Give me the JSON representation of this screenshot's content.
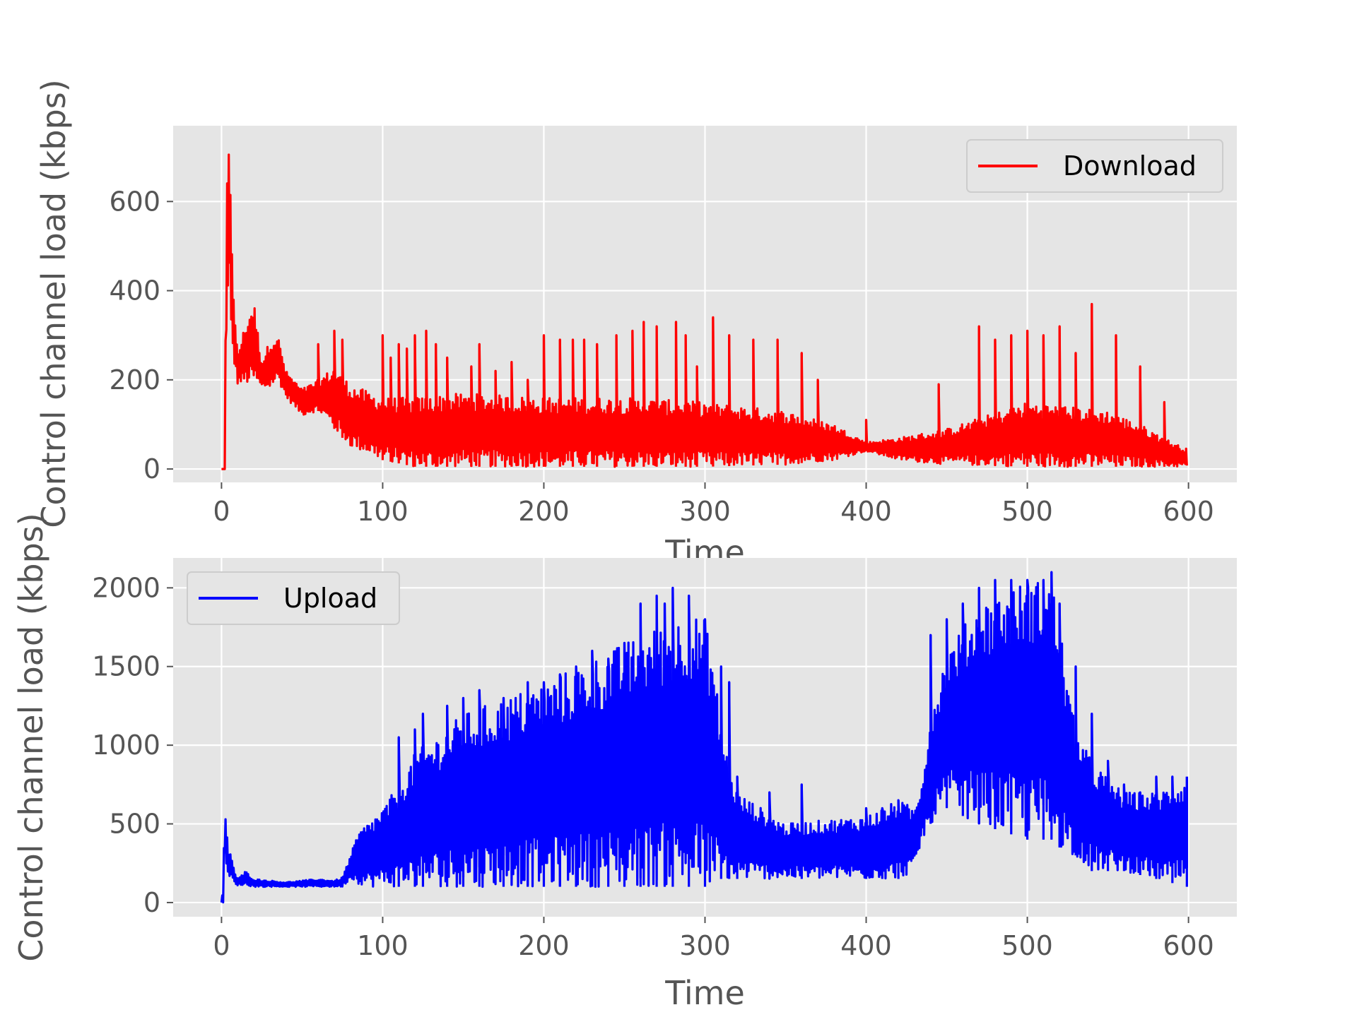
{
  "chart_data": [
    {
      "type": "line",
      "title": "",
      "xlabel": "Time",
      "ylabel": "Control channel load (kbps)",
      "xlim": [
        -30,
        630
      ],
      "ylim": [
        -30,
        770
      ],
      "xticks": [
        0,
        100,
        200,
        300,
        400,
        500,
        600
      ],
      "yticks": [
        0,
        200,
        400,
        600
      ],
      "grid": true,
      "legend_position": "upper right",
      "series": [
        {
          "name": "Download",
          "color": "#ff0000",
          "envelope": {
            "x": [
              0,
              2,
              3,
              4,
              5,
              6,
              8,
              10,
              15,
              20,
              25,
              30,
              35,
              40,
              50,
              60,
              70,
              80,
              100,
              120,
              150,
              200,
              250,
              300,
              350,
              380,
              400,
              420,
              450,
              500,
              550,
              570,
              590,
              599
            ],
            "high": [
              0,
              0,
              600,
              700,
              740,
              600,
              350,
              260,
              330,
              380,
              240,
              290,
              300,
              220,
              180,
              200,
              230,
              190,
              160,
              160,
              170,
              160,
              160,
              150,
              130,
              100,
              60,
              70,
              90,
              150,
              130,
              100,
              60,
              45
            ],
            "low": [
              0,
              0,
              300,
              350,
              400,
              270,
              230,
              190,
              190,
              190,
              180,
              180,
              200,
              160,
              120,
              130,
              90,
              50,
              20,
              5,
              5,
              5,
              5,
              5,
              10,
              20,
              40,
              20,
              10,
              5,
              5,
              5,
              5,
              5
            ]
          },
          "spikes": {
            "x": [
              60,
              70,
              75,
              100,
              105,
              110,
              115,
              120,
              127,
              133,
              140,
              155,
              160,
              170,
              180,
              190,
              200,
              210,
              218,
              225,
              233,
              245,
              255,
              262,
              270,
              282,
              288,
              295,
              305,
              315,
              330,
              345,
              360,
              370,
              400,
              445,
              470,
              480,
              490,
              500,
              510,
              520,
              530,
              540,
              555,
              570,
              585
            ],
            "y": [
              280,
              310,
              290,
              300,
              250,
              280,
              270,
              300,
              310,
              280,
              250,
              230,
              280,
              220,
              240,
              200,
              300,
              290,
              290,
              290,
              280,
              300,
              310,
              330,
              320,
              330,
              300,
              230,
              340,
              300,
              290,
              290,
              260,
              200,
              110,
              190,
              320,
              290,
              300,
              310,
              300,
              320,
              260,
              370,
              300,
              230,
              150
            ]
          }
        }
      ]
    },
    {
      "type": "line",
      "title": "",
      "xlabel": "Time",
      "ylabel": "Control channel load (kbps)",
      "xlim": [
        -30,
        630
      ],
      "ylim": [
        -90,
        2190
      ],
      "xticks": [
        0,
        100,
        200,
        300,
        400,
        500,
        600
      ],
      "yticks": [
        0,
        500,
        1000,
        1500,
        2000
      ],
      "grid": true,
      "legend_position": "upper left",
      "series": [
        {
          "name": "Upload",
          "color": "#0000ff",
          "envelope": {
            "x": [
              0,
              1,
              2,
              3,
              4,
              6,
              8,
              10,
              15,
              20,
              30,
              40,
              50,
              60,
              70,
              75,
              80,
              85,
              90,
              100,
              110,
              120,
              150,
              200,
              250,
              270,
              290,
              300,
              305,
              310,
              320,
              350,
              400,
              420,
              430,
              435,
              440,
              450,
              470,
              500,
              515,
              520,
              525,
              530,
              540,
              560,
              580,
              599
            ],
            "high": [
              0,
              100,
              600,
              500,
              350,
              320,
              200,
              150,
              200,
              150,
              140,
              130,
              140,
              150,
              140,
              160,
              300,
              450,
              500,
              600,
              750,
              950,
              1200,
              1400,
              1650,
              1750,
              1850,
              1800,
              1600,
              1100,
              700,
              500,
              550,
              650,
              600,
              800,
              1200,
              1600,
              1900,
              2050,
              2050,
              1800,
              1400,
              1100,
              900,
              700,
              700,
              800
            ],
            "low": [
              0,
              0,
              300,
              200,
              150,
              150,
              120,
              110,
              110,
              100,
              100,
              100,
              100,
              100,
              100,
              100,
              150,
              120,
              100,
              100,
              100,
              100,
              100,
              100,
              100,
              100,
              100,
              100,
              100,
              150,
              150,
              150,
              150,
              150,
              200,
              400,
              500,
              600,
              500,
              400,
              400,
              350,
              300,
              300,
              200,
              200,
              150,
              100
            ]
          },
          "spikes": {
            "x": [
              110,
              120,
              125,
              140,
              150,
              160,
              175,
              190,
              200,
              210,
              220,
              230,
              240,
              250,
              260,
              270,
              275,
              280,
              290,
              300,
              310,
              315,
              320,
              340,
              360,
              400,
              410,
              420,
              440,
              450,
              460,
              470,
              480,
              490,
              500,
              510,
              515,
              520,
              530,
              540,
              550,
              560,
              570,
              580,
              590,
              599
            ],
            "y": [
              1050,
              1100,
              1200,
              1250,
              1300,
              1350,
              1300,
              1400,
              1400,
              1450,
              1500,
              1600,
              1550,
              1650,
              1900,
              1950,
              1900,
              2000,
              1950,
              1800,
              1500,
              1400,
              800,
              700,
              750,
              600,
              600,
              650,
              1700,
              1800,
              1900,
              2000,
              2050,
              2050,
              2050,
              2050,
              2100,
              1900,
              1500,
              1200,
              900,
              750,
              700,
              800,
              800,
              800
            ]
          }
        }
      ]
    }
  ]
}
